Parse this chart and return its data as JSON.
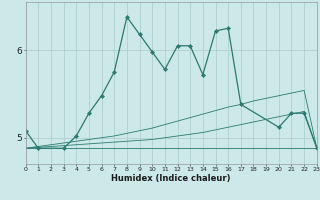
{
  "xlabel": "Humidex (Indice chaleur)",
  "x_values": [
    0,
    1,
    2,
    3,
    4,
    5,
    6,
    7,
    8,
    9,
    10,
    11,
    12,
    13,
    14,
    15,
    16,
    17,
    18,
    19,
    20,
    21,
    22,
    23
  ],
  "line_main": [
    5.08,
    4.88,
    null,
    4.88,
    5.02,
    5.28,
    5.48,
    5.75,
    6.38,
    6.18,
    5.98,
    5.78,
    6.05,
    6.05,
    5.72,
    6.22,
    6.25,
    5.38,
    null,
    null,
    5.12,
    5.28,
    5.28,
    4.88
  ],
  "line_upper": [
    4.88,
    4.88,
    4.88,
    4.88,
    4.88,
    4.88,
    4.88,
    4.88,
    4.88,
    4.88,
    4.88,
    4.88,
    4.88,
    4.88,
    4.88,
    4.88,
    4.88,
    4.88,
    4.88,
    4.88,
    4.88,
    4.88,
    4.88,
    4.88
  ],
  "line_slope1": [
    4.88,
    4.89,
    4.9,
    4.91,
    4.92,
    4.93,
    4.94,
    4.95,
    4.96,
    4.97,
    4.98,
    5.0,
    5.02,
    5.04,
    5.06,
    5.09,
    5.12,
    5.15,
    5.18,
    5.21,
    5.24,
    5.27,
    5.3,
    4.88
  ],
  "line_slope2": [
    4.88,
    4.9,
    4.92,
    4.94,
    4.96,
    4.98,
    5.0,
    5.02,
    5.05,
    5.08,
    5.11,
    5.15,
    5.19,
    5.23,
    5.27,
    5.31,
    5.35,
    5.38,
    5.42,
    5.45,
    5.48,
    5.51,
    5.54,
    4.88
  ],
  "ylim_min": 4.7,
  "ylim_max": 6.55,
  "yticks": [
    5,
    6
  ],
  "xlim_min": 0,
  "xlim_max": 23,
  "bg_color": "#cce8e8",
  "line_color": "#2a7a6f",
  "grid_color": "#b8d8d8"
}
